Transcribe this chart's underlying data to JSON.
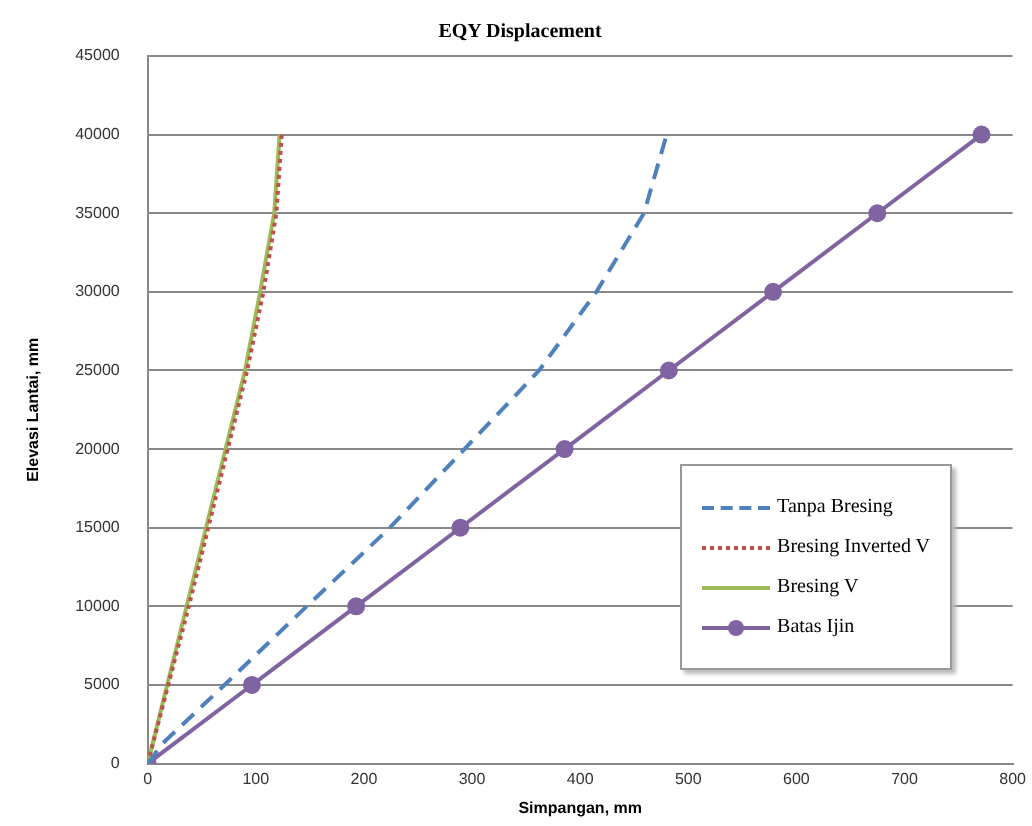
{
  "chart_data": {
    "type": "line",
    "title": "EQY Displacement",
    "xlabel": "Simpangan, mm",
    "ylabel": "Elevasi Lantai, mm",
    "xlim": [
      0,
      800
    ],
    "xticks": [
      0,
      100,
      200,
      300,
      400,
      500,
      600,
      700,
      800
    ],
    "ylim": [
      0,
      45000
    ],
    "yticks": [
      0,
      5000,
      10000,
      15000,
      20000,
      25000,
      30000,
      35000,
      40000,
      45000
    ],
    "grid": "y",
    "legend": "bottom right",
    "series": [
      {
        "name": "Tanpa Bresing",
        "color": "#4f81bd",
        "line_style": "dashed",
        "marker": "none",
        "x": [
          0,
          14,
          71,
          147,
          224,
          293,
          362,
          415,
          459,
          480
        ],
        "values": [
          0,
          1300,
          5000,
          10000,
          15000,
          20000,
          25000,
          30000,
          35000,
          40000
        ]
      },
      {
        "name": "Bresing Inverted V",
        "color": "#c0504d",
        "line_style": "dotted",
        "marker": "none",
        "x": [
          0,
          19,
          38,
          56,
          74,
          92,
          107,
          119,
          124
        ],
        "values": [
          0,
          5000,
          10000,
          15000,
          20000,
          25000,
          30000,
          35000,
          40000
        ]
      },
      {
        "name": "Bresing V",
        "color": "#9bbb59",
        "line_style": "solid",
        "marker": "none",
        "x": [
          0,
          18,
          36,
          54,
          72,
          90,
          104,
          117,
          122
        ],
        "values": [
          0,
          5000,
          10000,
          15000,
          20000,
          25000,
          30000,
          35000,
          40000
        ]
      },
      {
        "name": "Batas Ijin",
        "color": "#8064a2",
        "line_style": "solid",
        "marker": "circle",
        "x": [
          0,
          96.4,
          192.8,
          289.2,
          385.6,
          482,
          578.4,
          674.8,
          771.2
        ],
        "values": [
          0,
          5000,
          10000,
          15000,
          20000,
          25000,
          30000,
          35000,
          40000
        ]
      }
    ]
  }
}
